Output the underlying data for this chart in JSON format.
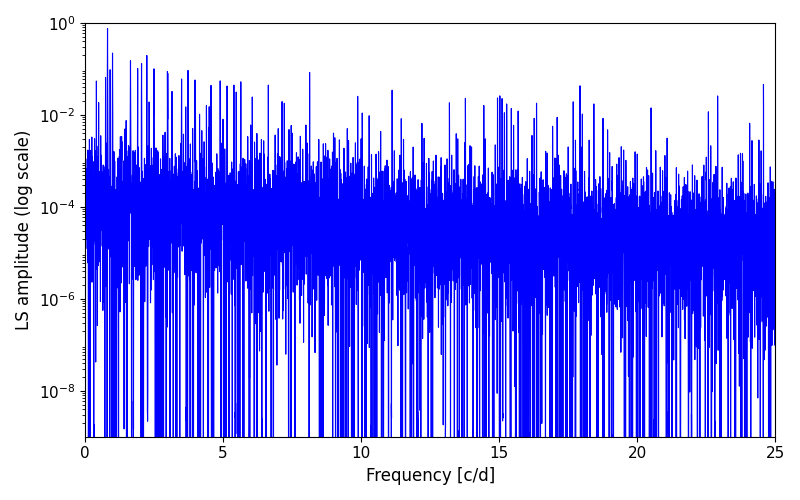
{
  "title": "",
  "xlabel": "Frequency [c/d]",
  "ylabel": "LS amplitude (log scale)",
  "xlim": [
    0,
    25
  ],
  "ylim_log": [
    -9,
    0
  ],
  "line_color": "#0000ff",
  "line_width": 0.8,
  "figsize": [
    8.0,
    5.0
  ],
  "dpi": 100,
  "seed": 42,
  "n_points": 8000
}
